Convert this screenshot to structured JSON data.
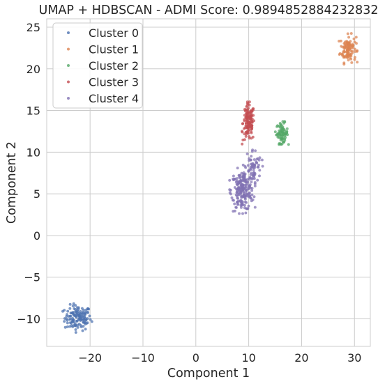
{
  "chart_data": {
    "type": "scatter",
    "title": "UMAP + HDBSCAN - ADMI Score: 0.9894852884232832",
    "xlabel": "Component 1",
    "ylabel": "Component 2",
    "xlim": [
      -28.2,
      33.0
    ],
    "ylim": [
      -13.3,
      26.0
    ],
    "x_ticks": [
      -20,
      -10,
      0,
      10,
      20,
      30
    ],
    "y_ticks": [
      -10,
      -5,
      0,
      5,
      10,
      15,
      20,
      25
    ],
    "x_tick_labels": [
      "−20",
      "−10",
      "0",
      "10",
      "20",
      "30"
    ],
    "y_tick_labels": [
      "−10",
      "−5",
      "0",
      "5",
      "10",
      "15",
      "20",
      "25"
    ],
    "grid": true,
    "legend_position": "top-left",
    "series": [
      {
        "name": "Cluster 0",
        "color": "#4c72b0",
        "blobs": [
          {
            "cx": -22.3,
            "cy": -9.9,
            "sx": 1.25,
            "sy": 0.75,
            "n": 130
          }
        ]
      },
      {
        "name": "Cluster 1",
        "color": "#dd8452",
        "blobs": [
          {
            "cx": 28.8,
            "cy": 22.4,
            "sx": 0.75,
            "sy": 0.8,
            "n": 110
          }
        ]
      },
      {
        "name": "Cluster 2",
        "color": "#55a868",
        "blobs": [
          {
            "cx": 16.3,
            "cy": 12.3,
            "sx": 0.55,
            "sy": 0.6,
            "n": 75
          }
        ]
      },
      {
        "name": "Cluster 3",
        "color": "#c44e52",
        "blobs": [
          {
            "cx": 10.0,
            "cy": 13.5,
            "sx": 0.55,
            "sy": 1.1,
            "n": 130
          }
        ]
      },
      {
        "name": "Cluster 4",
        "color": "#8172b3",
        "blobs": [
          {
            "cx": 8.8,
            "cy": 5.4,
            "sx": 1.05,
            "sy": 1.2,
            "n": 200
          },
          {
            "cx": 10.8,
            "cy": 8.2,
            "sx": 0.8,
            "sy": 1.1,
            "n": 70
          }
        ]
      }
    ]
  }
}
